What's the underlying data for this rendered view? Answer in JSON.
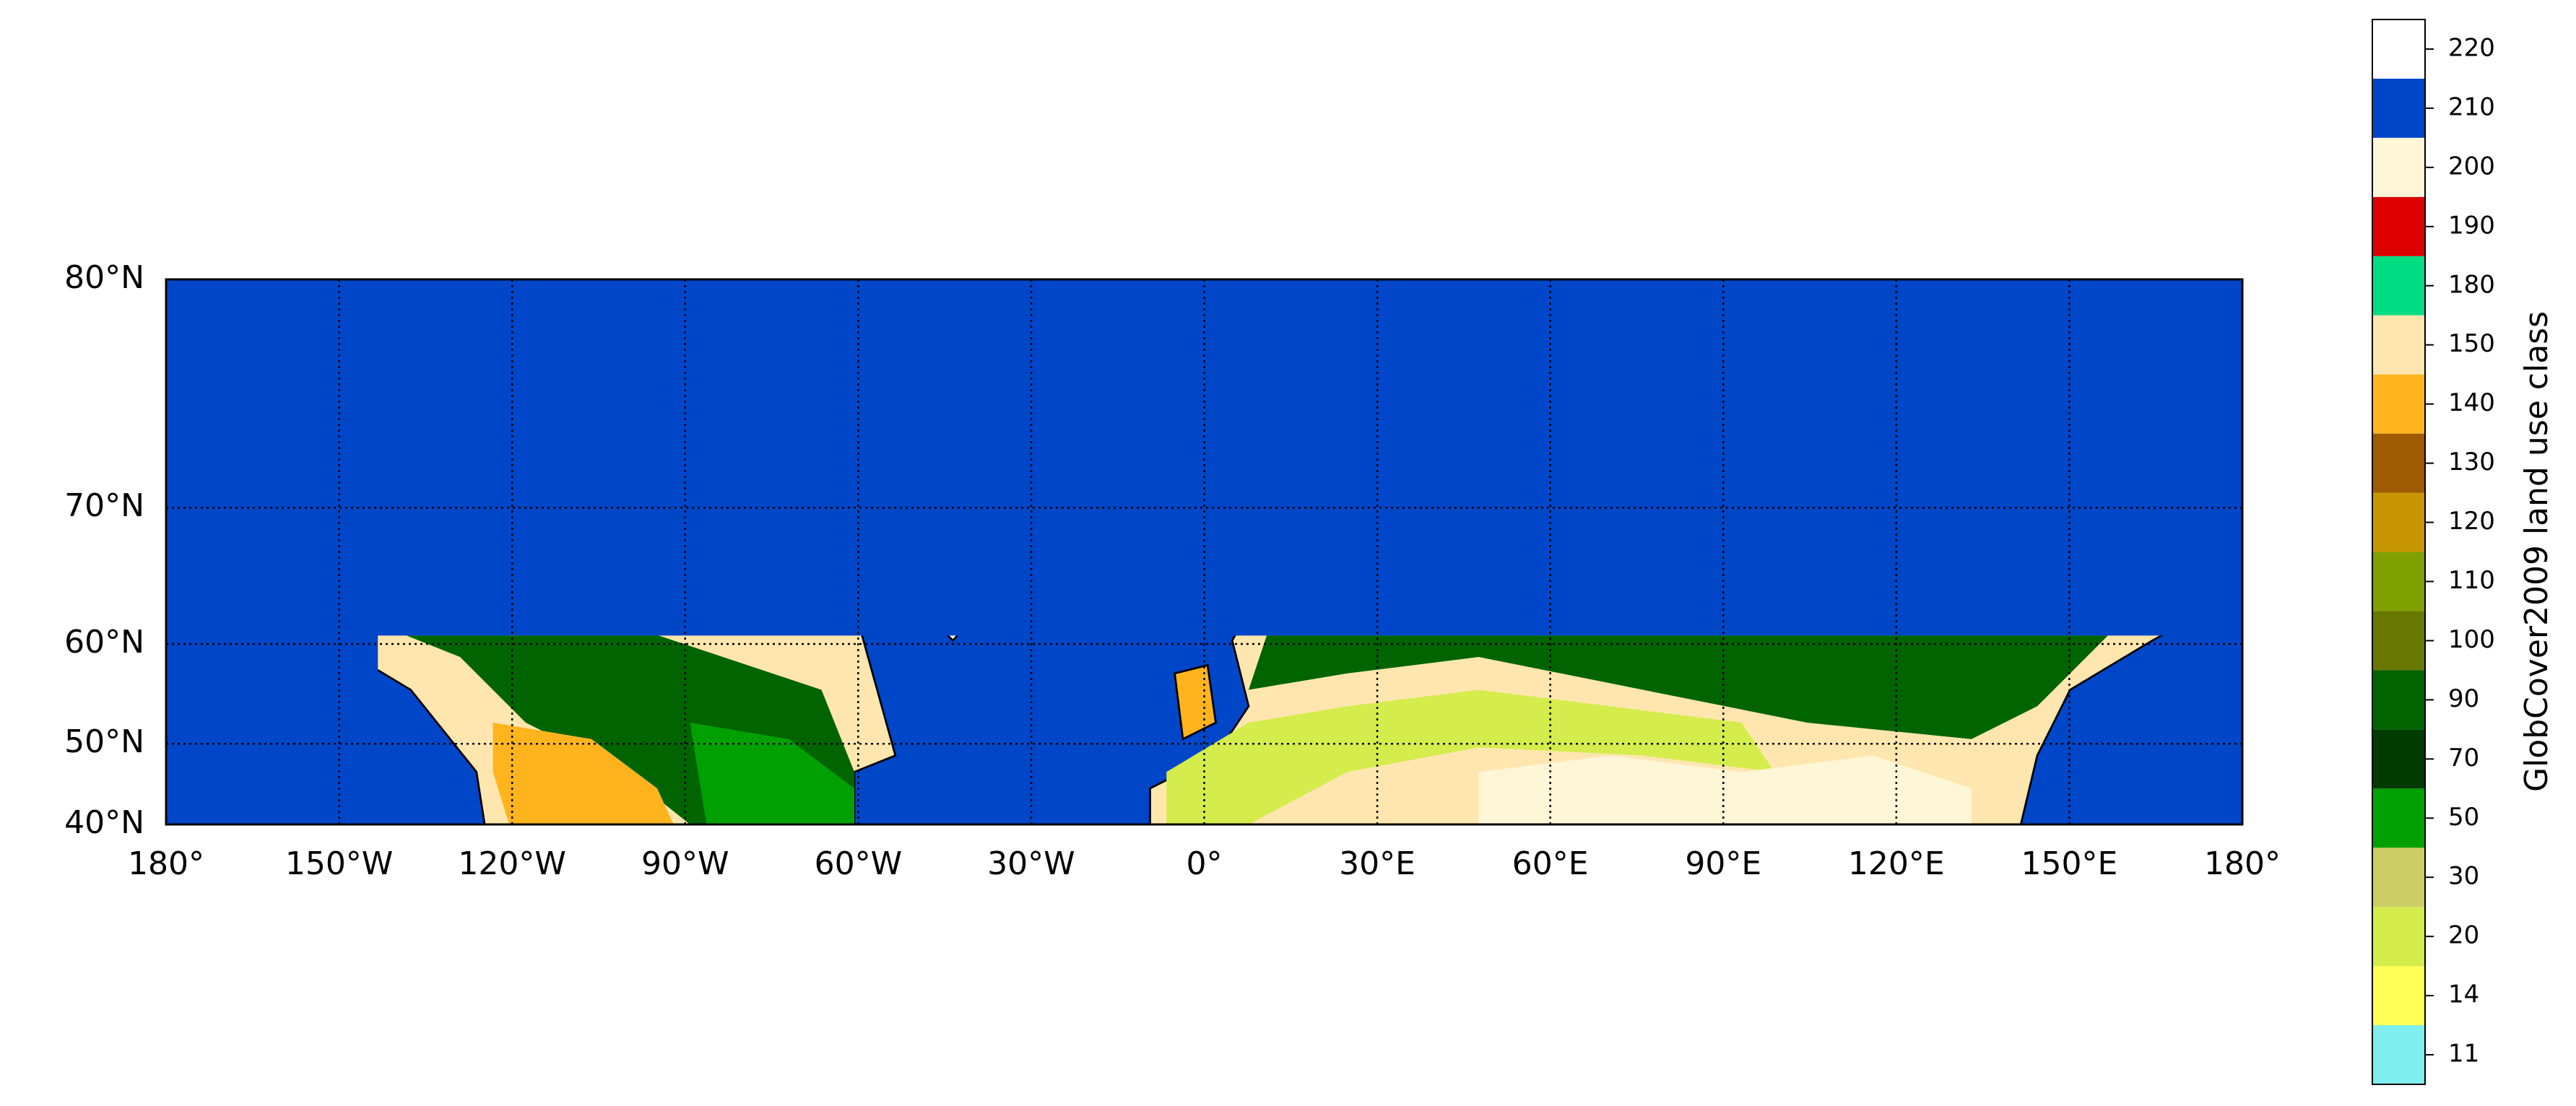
{
  "chart_data": {
    "type": "map",
    "projection": "mercator",
    "xlim": [
      -180,
      180
    ],
    "ylim": [
      40,
      80
    ],
    "grid": true,
    "xticks": [
      {
        "value": -180,
        "label": "180°"
      },
      {
        "value": -150,
        "label": "150°W"
      },
      {
        "value": -120,
        "label": "120°W"
      },
      {
        "value": -90,
        "label": "90°W"
      },
      {
        "value": -60,
        "label": "60°W"
      },
      {
        "value": -30,
        "label": "30°W"
      },
      {
        "value": 0,
        "label": "0°"
      },
      {
        "value": 30,
        "label": "30°E"
      },
      {
        "value": 60,
        "label": "60°E"
      },
      {
        "value": 90,
        "label": "90°E"
      },
      {
        "value": 120,
        "label": "120°E"
      },
      {
        "value": 150,
        "label": "150°E"
      },
      {
        "value": 180,
        "label": "180°"
      }
    ],
    "yticks": [
      {
        "value": 40,
        "label": "40°N"
      },
      {
        "value": 50,
        "label": "50°N"
      },
      {
        "value": 60,
        "label": "60°N"
      },
      {
        "value": 70,
        "label": "70°N"
      },
      {
        "value": 80,
        "label": "80°N"
      }
    ],
    "colorbar": {
      "label": "GlobCover2009 land use class",
      "values": [
        11,
        14,
        20,
        30,
        50,
        70,
        90,
        100,
        110,
        120,
        130,
        140,
        150,
        180,
        190,
        200,
        210,
        220
      ],
      "colors": [
        "#7eeeee",
        "#ffff55",
        "#d4ec4c",
        "#cdcd66",
        "#00a000",
        "#003c00",
        "#006400",
        "#687800",
        "#80a000",
        "#c89600",
        "#a05a00",
        "#ffb41e",
        "#ffe6ae",
        "#00dc82",
        "#dc0000",
        "#fff5d7",
        "#0046c8",
        "#ffffff"
      ]
    }
  }
}
